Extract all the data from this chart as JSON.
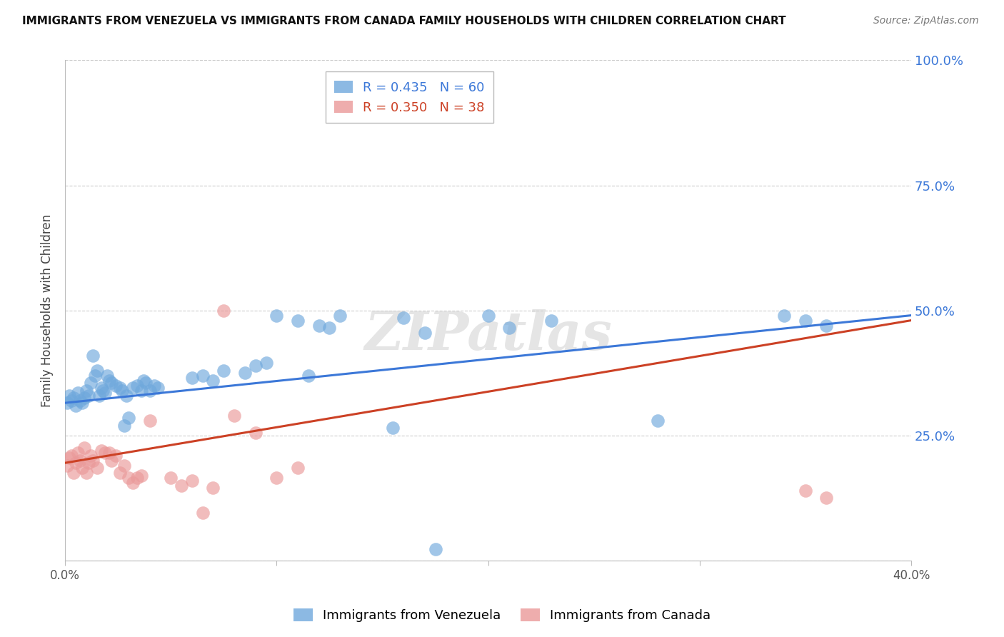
{
  "title": "IMMIGRANTS FROM VENEZUELA VS IMMIGRANTS FROM CANADA FAMILY HOUSEHOLDS WITH CHILDREN CORRELATION CHART",
  "source": "Source: ZipAtlas.com",
  "xlabel_venezuela": "Immigrants from Venezuela",
  "xlabel_canada": "Immigrants from Canada",
  "ylabel": "Family Households with Children",
  "xlim": [
    0.0,
    0.4
  ],
  "ylim": [
    0.0,
    1.0
  ],
  "yticks": [
    0.0,
    0.25,
    0.5,
    0.75,
    1.0
  ],
  "ytick_labels": [
    "",
    "25.0%",
    "50.0%",
    "75.0%",
    "100.0%"
  ],
  "xticks": [
    0.0,
    0.1,
    0.2,
    0.3,
    0.4
  ],
  "xtick_labels": [
    "0.0%",
    "",
    "",
    "",
    "40.0%"
  ],
  "venezuela_color": "#6fa8dc",
  "canada_color": "#ea9999",
  "venezuela_R": 0.435,
  "venezuela_N": 60,
  "canada_R": 0.35,
  "canada_N": 38,
  "venezuela_scatter": [
    [
      0.001,
      0.315
    ],
    [
      0.002,
      0.33
    ],
    [
      0.003,
      0.32
    ],
    [
      0.004,
      0.325
    ],
    [
      0.005,
      0.31
    ],
    [
      0.006,
      0.335
    ],
    [
      0.007,
      0.32
    ],
    [
      0.008,
      0.315
    ],
    [
      0.009,
      0.325
    ],
    [
      0.01,
      0.34
    ],
    [
      0.011,
      0.33
    ],
    [
      0.012,
      0.355
    ],
    [
      0.013,
      0.41
    ],
    [
      0.014,
      0.37
    ],
    [
      0.015,
      0.38
    ],
    [
      0.016,
      0.33
    ],
    [
      0.017,
      0.345
    ],
    [
      0.018,
      0.34
    ],
    [
      0.019,
      0.335
    ],
    [
      0.02,
      0.37
    ],
    [
      0.021,
      0.36
    ],
    [
      0.022,
      0.355
    ],
    [
      0.024,
      0.35
    ],
    [
      0.026,
      0.345
    ],
    [
      0.027,
      0.34
    ],
    [
      0.028,
      0.27
    ],
    [
      0.029,
      0.33
    ],
    [
      0.03,
      0.285
    ],
    [
      0.032,
      0.345
    ],
    [
      0.034,
      0.35
    ],
    [
      0.036,
      0.34
    ],
    [
      0.037,
      0.36
    ],
    [
      0.038,
      0.355
    ],
    [
      0.04,
      0.34
    ],
    [
      0.042,
      0.35
    ],
    [
      0.044,
      0.345
    ],
    [
      0.06,
      0.365
    ],
    [
      0.065,
      0.37
    ],
    [
      0.07,
      0.36
    ],
    [
      0.075,
      0.38
    ],
    [
      0.085,
      0.375
    ],
    [
      0.09,
      0.39
    ],
    [
      0.095,
      0.395
    ],
    [
      0.1,
      0.49
    ],
    [
      0.11,
      0.48
    ],
    [
      0.115,
      0.37
    ],
    [
      0.12,
      0.47
    ],
    [
      0.125,
      0.465
    ],
    [
      0.13,
      0.49
    ],
    [
      0.155,
      0.265
    ],
    [
      0.16,
      0.485
    ],
    [
      0.17,
      0.455
    ],
    [
      0.175,
      0.023
    ],
    [
      0.2,
      0.49
    ],
    [
      0.21,
      0.465
    ],
    [
      0.23,
      0.48
    ],
    [
      0.28,
      0.28
    ],
    [
      0.34,
      0.49
    ],
    [
      0.35,
      0.48
    ],
    [
      0.36,
      0.47
    ]
  ],
  "canada_scatter": [
    [
      0.001,
      0.19
    ],
    [
      0.002,
      0.205
    ],
    [
      0.003,
      0.21
    ],
    [
      0.004,
      0.175
    ],
    [
      0.005,
      0.195
    ],
    [
      0.006,
      0.215
    ],
    [
      0.007,
      0.2
    ],
    [
      0.008,
      0.185
    ],
    [
      0.009,
      0.225
    ],
    [
      0.01,
      0.175
    ],
    [
      0.011,
      0.195
    ],
    [
      0.012,
      0.21
    ],
    [
      0.013,
      0.2
    ],
    [
      0.015,
      0.185
    ],
    [
      0.017,
      0.22
    ],
    [
      0.019,
      0.215
    ],
    [
      0.021,
      0.215
    ],
    [
      0.022,
      0.2
    ],
    [
      0.024,
      0.21
    ],
    [
      0.026,
      0.175
    ],
    [
      0.028,
      0.19
    ],
    [
      0.03,
      0.165
    ],
    [
      0.032,
      0.155
    ],
    [
      0.034,
      0.165
    ],
    [
      0.036,
      0.17
    ],
    [
      0.04,
      0.28
    ],
    [
      0.05,
      0.165
    ],
    [
      0.055,
      0.15
    ],
    [
      0.06,
      0.16
    ],
    [
      0.065,
      0.095
    ],
    [
      0.07,
      0.145
    ],
    [
      0.075,
      0.5
    ],
    [
      0.08,
      0.29
    ],
    [
      0.09,
      0.255
    ],
    [
      0.1,
      0.165
    ],
    [
      0.11,
      0.185
    ],
    [
      0.35,
      0.14
    ],
    [
      0.36,
      0.125
    ]
  ],
  "venezuela_line_color": "#3c78d8",
  "canada_line_color": "#cc4125",
  "venezuela_line": [
    0.0,
    0.4,
    0.315,
    0.49
  ],
  "canada_line": [
    0.0,
    0.4,
    0.195,
    0.48
  ],
  "watermark": "ZIPatlas",
  "background_color": "#ffffff",
  "grid_color": "#cccccc"
}
